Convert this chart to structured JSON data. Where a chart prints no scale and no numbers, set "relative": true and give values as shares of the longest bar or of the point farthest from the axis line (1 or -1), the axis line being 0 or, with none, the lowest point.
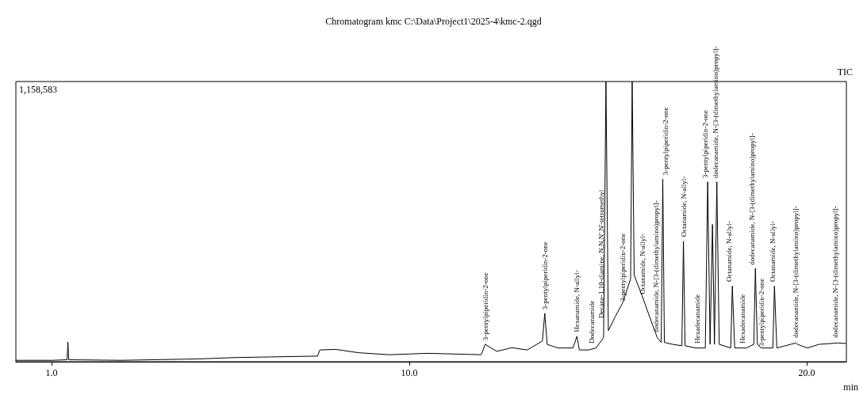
{
  "chart_data": {
    "type": "line",
    "title": "Chromatogram kmc C:\\Data\\Project1\\2025-4\\kmc-2.qgd",
    "xlabel": "min",
    "relative": true,
    "color": "#000000",
    "grid": false,
    "marker": "none",
    "line_style": "solid",
    "xlim": [
      0.1,
      21.0
    ],
    "xticks": [
      {
        "value": 1,
        "label": "1.0"
      },
      {
        "value": 10,
        "label": "10.0"
      },
      {
        "value": 20,
        "label": "20.0"
      }
    ],
    "x": [
      0.1,
      1.0,
      1.39,
      1.41,
      1.43,
      2.76,
      4.69,
      5.65,
      7.69,
      7.75,
      8.15,
      8.73,
      9.5,
      10.46,
      11.81,
      11.91,
      12.2,
      12.58,
      12.97,
      13.35,
      13.41,
      13.47,
      13.74,
      14.12,
      14.22,
      14.28,
      14.51,
      14.7,
      14.89,
      14.95,
      15.01,
      15.18,
      15.37,
      15.57,
      15.61,
      15.66,
      15.86,
      16.05,
      16.24,
      16.34,
      16.38,
      16.42,
      16.63,
      16.86,
      16.9,
      16.94,
      17.21,
      17.45,
      17.51,
      17.57,
      17.63,
      17.68,
      17.74,
      17.8,
      18.09,
      18.13,
      18.19,
      18.48,
      18.67,
      18.71,
      18.76,
      18.86,
      19.15,
      19.19,
      19.25,
      19.73,
      19.77,
      20.02,
      20.31,
      20.79,
      21.0
    ],
    "values": [
      0.005,
      0.005,
      0.007,
      0.07,
      0.007,
      0.005,
      0.01,
      0.015,
      0.02,
      0.042,
      0.044,
      0.032,
      0.025,
      0.03,
      0.025,
      0.062,
      0.037,
      0.05,
      0.042,
      0.074,
      0.173,
      0.062,
      0.049,
      0.049,
      0.091,
      0.042,
      0.042,
      0.049,
      0.086,
      1.0,
      0.111,
      0.16,
      0.21,
      0.296,
      1.0,
      0.309,
      0.235,
      0.16,
      0.086,
      0.069,
      0.652,
      0.069,
      0.062,
      0.057,
      0.43,
      0.057,
      0.049,
      0.049,
      0.642,
      0.062,
      0.49,
      0.062,
      0.642,
      0.062,
      0.049,
      0.27,
      0.049,
      0.049,
      0.062,
      0.333,
      0.062,
      0.049,
      0.049,
      0.27,
      0.049,
      0.067,
      0.062,
      0.049,
      0.062,
      0.067,
      0.065
    ],
    "annotations": [
      "1,158,583",
      "TIC",
      {
        "text": "3-pentylpiperidin-2-one",
        "x": 11.91,
        "y": 0.07
      },
      {
        "text": "3-pentylpiperidin-2-one",
        "x": 13.41,
        "y": 0.18
      },
      {
        "text": "Hexanamide, N-allyl-",
        "x": 14.22,
        "y": 0.1
      },
      {
        "text": "Dodecanamide",
        "x": 14.6,
        "y": 0.06
      },
      {
        "text": "Decane-1,10-diamine, N,N,N',N'-tetramethyl",
        "x": 14.84,
        "y": 0.15
      },
      {
        "text": "3-pentylpiperidin-2-one",
        "x": 15.37,
        "y": 0.21
      },
      {
        "text": "Octanamide, N-allyl-",
        "x": 15.86,
        "y": 0.235
      },
      {
        "text": "dodecanamide, N-[3-(dimethylamino)propyl]-",
        "x": 16.2,
        "y": 0.1
      },
      {
        "text": "3-pentylpiperidin-2-one",
        "x": 16.45,
        "y": 0.66
      },
      {
        "text": "Octanamide, N-allyl-",
        "x": 16.9,
        "y": 0.44
      },
      {
        "text": "Hexadecanamide",
        "x": 17.24,
        "y": 0.06
      },
      {
        "text": "3-pentylpiperidin-2-one",
        "x": 17.45,
        "y": 0.65
      },
      {
        "text": "dodecanamide, N-[3-(dimethylamino)propyl]-",
        "x": 17.7,
        "y": 0.65
      },
      {
        "text": "Octanamide, N-allyl-",
        "x": 18.05,
        "y": 0.28
      },
      {
        "text": "Hexadecanamide",
        "x": 18.38,
        "y": 0.06
      },
      {
        "text": "dodecanamide, N-[3-(dimethylamino)propyl]-",
        "x": 18.63,
        "y": 0.34
      },
      {
        "text": "3-pentylpiperidin-2-one",
        "x": 18.86,
        "y": 0.049
      },
      {
        "text": "Octanamide, N-allyl-",
        "x": 19.15,
        "y": 0.28
      },
      {
        "text": "dodecanamide, N-[3-(dimethylamino)propyl]-",
        "x": 19.73,
        "y": 0.08
      },
      {
        "text": "dodecanamide, N-[3-(dimethylamino)propyl]-",
        "x": 20.72,
        "y": 0.08
      }
    ]
  }
}
